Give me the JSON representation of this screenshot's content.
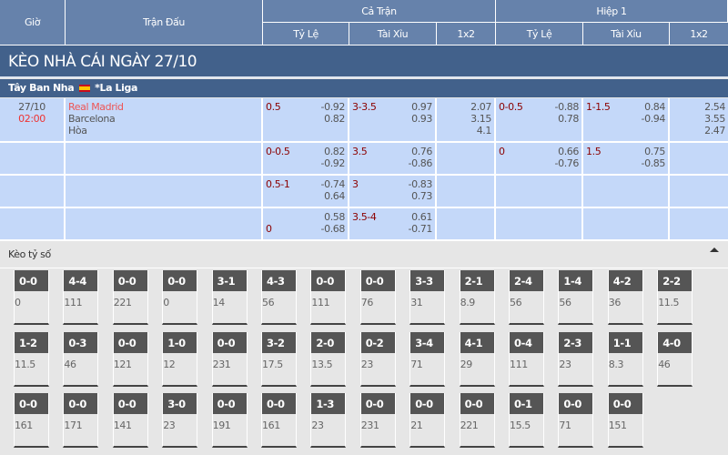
{
  "header": {
    "time": "Giờ",
    "match": "Trận Đấu",
    "full_time": "Cả Trận",
    "first_half": "Hiệp 1",
    "handicap": "Tỷ Lệ",
    "over_under": "Tài Xỉu",
    "one_x_two": "1x2"
  },
  "title": "KÈO NHÀ CÁI NGÀY 27/10",
  "league": {
    "country": "Tây Ban Nha",
    "name": "*La Liga"
  },
  "match": {
    "date": "27/10",
    "time": "02:00",
    "home": "Real Madrid",
    "away": "Barcelona",
    "draw": "Hòa"
  },
  "rows": [
    {
      "ft_hdp": "0.5",
      "ft_hdp_o": [
        "-0.92",
        "0.82"
      ],
      "ft_ou": "3-3.5",
      "ft_ou_o": [
        "0.97",
        "0.93"
      ],
      "ft_1x2": [
        "2.07",
        "3.15",
        "4.1"
      ],
      "h1_hdp": "0-0.5",
      "h1_hdp_o": [
        "-0.88",
        "0.78"
      ],
      "h1_ou": "1-1.5",
      "h1_ou_o": [
        "0.84",
        "-0.94"
      ],
      "h1_1x2": [
        "2.54",
        "3.55",
        "2.47"
      ]
    },
    {
      "ft_hdp": "0-0.5",
      "ft_hdp_o": [
        "0.82",
        "-0.92"
      ],
      "ft_ou": "3.5",
      "ft_ou_o": [
        "0.76",
        "-0.86"
      ],
      "h1_hdp": "0",
      "h1_hdp_o": [
        "0.66",
        "-0.76"
      ],
      "h1_ou": "1.5",
      "h1_ou_o": [
        "0.75",
        "-0.85"
      ]
    },
    {
      "ft_hdp": "0.5-1",
      "ft_hdp_o": [
        "-0.74",
        "0.64"
      ],
      "ft_ou": "3",
      "ft_ou_o": [
        "-0.83",
        "0.73"
      ]
    },
    {
      "ft_hdp": "0",
      "ft_hdp_o": [
        "0.58",
        "-0.68"
      ],
      "ft_ou": "3.5-4",
      "ft_ou_o": [
        "0.61",
        "-0.71"
      ]
    }
  ],
  "correct_score": {
    "label": "Kèo tỷ số",
    "rows": [
      [
        [
          "0-0",
          "0"
        ],
        [
          "4-4",
          "111"
        ],
        [
          "0-0",
          "221"
        ],
        [
          "0-0",
          "0"
        ],
        [
          "3-1",
          "14"
        ],
        [
          "4-3",
          "56"
        ],
        [
          "0-0",
          "111"
        ],
        [
          "0-0",
          "76"
        ],
        [
          "3-3",
          "31"
        ],
        [
          "2-1",
          "8.9"
        ],
        [
          "2-4",
          "56"
        ],
        [
          "1-4",
          "56"
        ],
        [
          "4-2",
          "36"
        ],
        [
          "2-2",
          "11.5"
        ]
      ],
      [
        [
          "1-2",
          "11.5"
        ],
        [
          "0-3",
          "46"
        ],
        [
          "0-0",
          "121"
        ],
        [
          "1-0",
          "12"
        ],
        [
          "0-0",
          "231"
        ],
        [
          "3-2",
          "17.5"
        ],
        [
          "2-0",
          "13.5"
        ],
        [
          "0-2",
          "23"
        ],
        [
          "3-4",
          "71"
        ],
        [
          "4-1",
          "29"
        ],
        [
          "0-4",
          "111"
        ],
        [
          "2-3",
          "23"
        ],
        [
          "1-1",
          "8.3"
        ],
        [
          "4-0",
          "46"
        ]
      ],
      [
        [
          "0-0",
          "161"
        ],
        [
          "0-0",
          "171"
        ],
        [
          "0-0",
          "141"
        ],
        [
          "3-0",
          "23"
        ],
        [
          "0-0",
          "191"
        ],
        [
          "0-0",
          "161"
        ],
        [
          "1-3",
          "23"
        ],
        [
          "0-0",
          "231"
        ],
        [
          "0-0",
          "21"
        ],
        [
          "0-0",
          "221"
        ],
        [
          "0-1",
          "15.5"
        ],
        [
          "0-0",
          "71"
        ],
        [
          "0-0",
          "151"
        ]
      ]
    ]
  }
}
